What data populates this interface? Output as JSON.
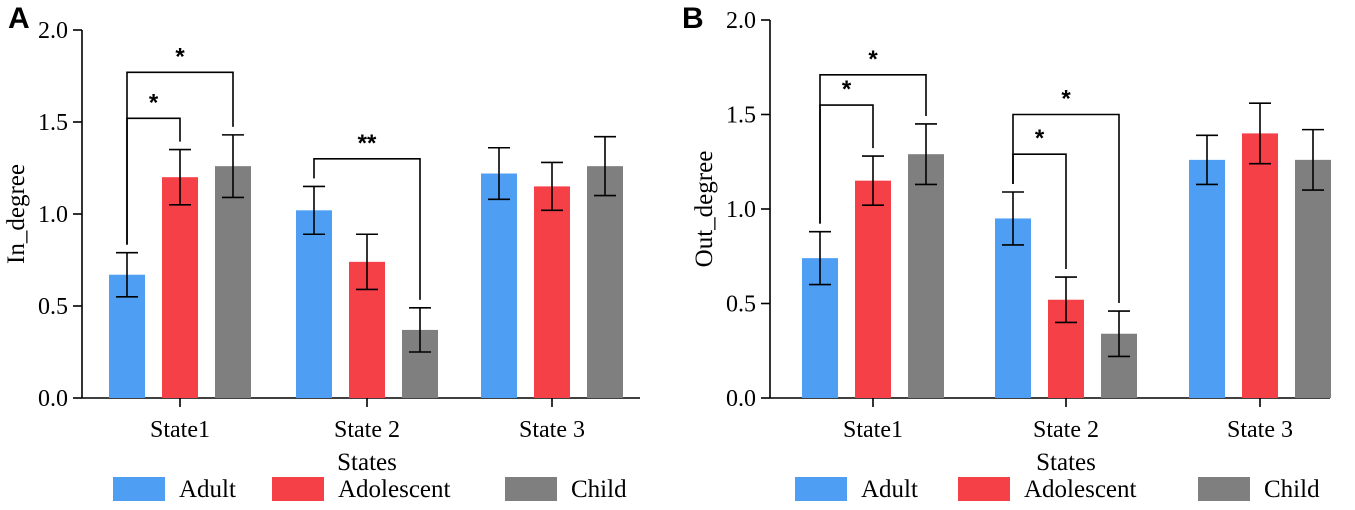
{
  "colors": {
    "Adult": "#4e9ff4",
    "Adolescent": "#f44046",
    "Child": "#7f7f7f"
  },
  "chart_data": [
    {
      "panel": "A",
      "type": "bar",
      "xlabel": "States",
      "ylabel": "In_degree",
      "ylim": [
        0,
        2.0
      ],
      "yticks": [
        "0.0",
        "0.5",
        "1.0",
        "1.5",
        "2.0"
      ],
      "categories": [
        "State1",
        "State 2",
        "State 3"
      ],
      "series": [
        {
          "name": "Adult",
          "values": [
            0.67,
            1.02,
            1.22
          ],
          "errors": [
            0.12,
            0.13,
            0.14
          ]
        },
        {
          "name": "Adolescent",
          "values": [
            1.2,
            0.74,
            1.15
          ],
          "errors": [
            0.15,
            0.15,
            0.13
          ]
        },
        {
          "name": "Child",
          "values": [
            1.26,
            0.37,
            1.26
          ],
          "errors": [
            0.17,
            0.12,
            0.16
          ]
        }
      ],
      "significance": [
        {
          "category": 0,
          "from": 0,
          "to": 1,
          "label": "*",
          "y": 1.52
        },
        {
          "category": 0,
          "from": 0,
          "to": 2,
          "label": "*",
          "y": 1.77
        },
        {
          "category": 1,
          "from": 0,
          "to": 2,
          "label": "**",
          "y": 1.3
        }
      ]
    },
    {
      "panel": "B",
      "type": "bar",
      "xlabel": "States",
      "ylabel": "Out_degree",
      "ylim": [
        0,
        2.0
      ],
      "yticks": [
        "0.0",
        "0.5",
        "1.0",
        "1.5",
        "2.0"
      ],
      "categories": [
        "State1",
        "State 2",
        "State 3"
      ],
      "series": [
        {
          "name": "Adult",
          "values": [
            0.74,
            0.95,
            1.26
          ],
          "errors": [
            0.14,
            0.14,
            0.13
          ]
        },
        {
          "name": "Adolescent",
          "values": [
            1.15,
            0.52,
            1.4
          ],
          "errors": [
            0.13,
            0.12,
            0.16
          ]
        },
        {
          "name": "Child",
          "values": [
            1.29,
            0.34,
            1.26
          ],
          "errors": [
            0.16,
            0.12,
            0.16
          ]
        }
      ],
      "significance": [
        {
          "category": 0,
          "from": 0,
          "to": 1,
          "label": "*",
          "y": 1.55
        },
        {
          "category": 0,
          "from": 0,
          "to": 2,
          "label": "*",
          "y": 1.71
        },
        {
          "category": 1,
          "from": 0,
          "to": 1,
          "label": "*",
          "y": 1.29
        },
        {
          "category": 1,
          "from": 0,
          "to": 2,
          "label": "*",
          "y": 1.5
        }
      ]
    }
  ]
}
